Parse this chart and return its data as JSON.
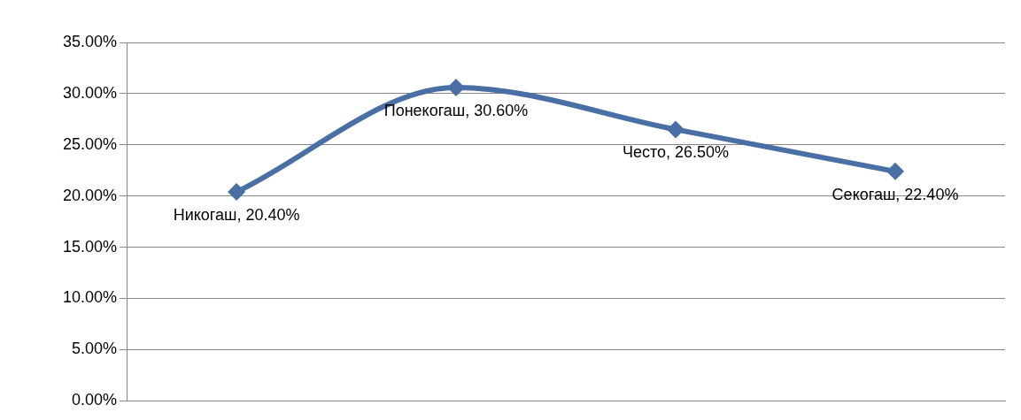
{
  "chart_data": {
    "type": "line",
    "categories": [
      null,
      null,
      null,
      null
    ],
    "series": [
      {
        "color": "#4a6fa5",
        "values": [
          20.4,
          30.6,
          26.5,
          22.4
        ],
        "value_labels": [
          "Никогаш, 20.40%",
          "Понекогаш, 30.60%",
          "Често, 26.50%",
          "Секогаш, 22.40%"
        ]
      }
    ],
    "ylim": [
      0,
      35
    ],
    "yticks": [
      {
        "value": 0,
        "label": "0.00%"
      },
      {
        "value": 5,
        "label": "5.00%"
      },
      {
        "value": 10,
        "label": "10.00%"
      },
      {
        "value": 15,
        "label": "15.00%"
      },
      {
        "value": 20,
        "label": "20.00%"
      },
      {
        "value": 25,
        "label": "25.00%"
      },
      {
        "value": 30,
        "label": "30.00%"
      },
      {
        "value": 35,
        "label": "35.00%"
      }
    ],
    "grid": "y",
    "marker": "diamond",
    "line_style": "solid",
    "tick_labels": "y",
    "legend": false
  }
}
